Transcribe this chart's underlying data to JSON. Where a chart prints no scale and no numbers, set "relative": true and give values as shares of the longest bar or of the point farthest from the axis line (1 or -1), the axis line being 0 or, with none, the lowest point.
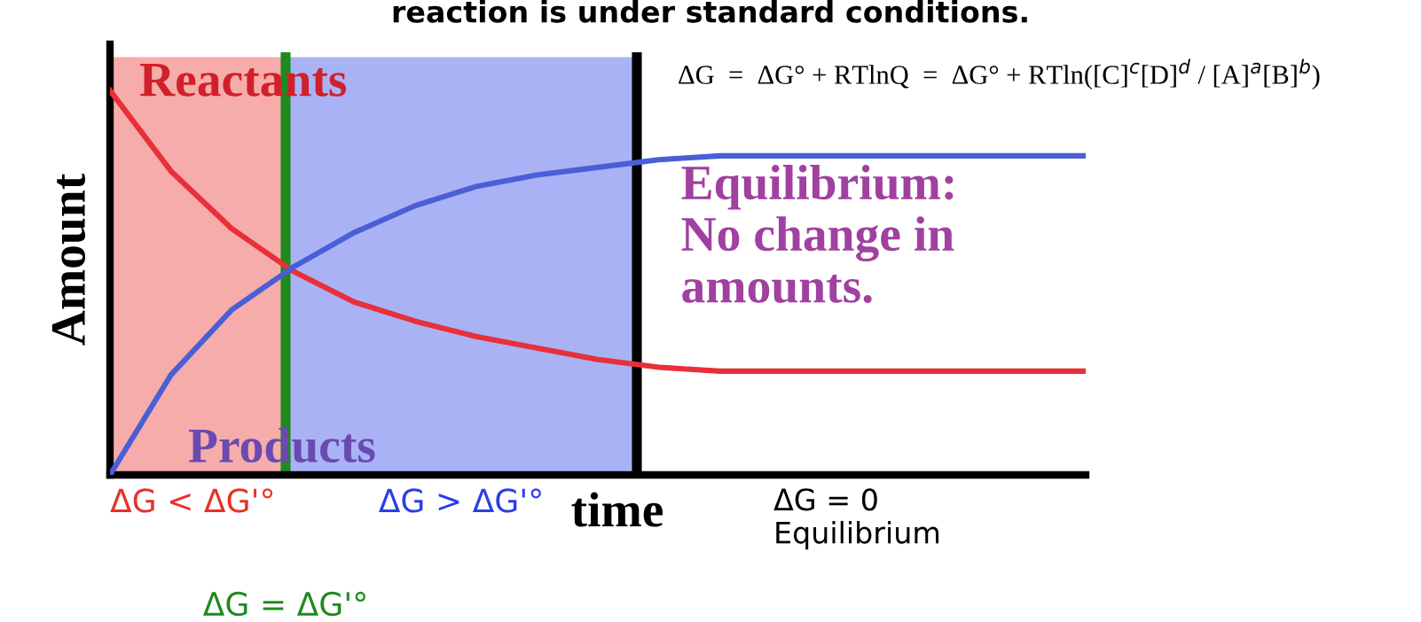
{
  "chart_data": {
    "type": "line",
    "title": "reaction is under standard conditions.",
    "xlabel": "time",
    "ylabel": "Amount",
    "relative": true,
    "marker": "none",
    "line_style": "solid",
    "categories": [
      null,
      null,
      null,
      null,
      null,
      null,
      null,
      null,
      null,
      null,
      null,
      null,
      null,
      null,
      null,
      null,
      null
    ],
    "series": [
      {
        "name": "Reactants",
        "color": "#e8303a",
        "values": [
          1.0,
          0.79,
          0.64,
          0.53,
          0.45,
          0.4,
          0.36,
          0.33,
          0.3,
          0.28,
          0.27,
          0.27,
          0.27,
          0.27,
          0.27,
          0.27,
          0.27
        ]
      },
      {
        "name": "Products",
        "color": "#4a5fd6",
        "values": [
          0,
          0.26,
          0.43,
          0.54,
          0.63,
          0.7,
          0.75,
          0.78,
          0.8,
          0.82,
          0.83,
          0.83,
          0.83,
          0.83,
          0.83,
          0.83,
          0.83
        ]
      }
    ],
    "annotations": [
      "Equilibrium:\nNo change in\namounts.",
      "ΔG  =  ΔG° + RTlnQ  =  ΔG° + RTln([C]$^{c}$[D]$^{d}$ / [A]$^{a}$[B]$^{b}$)",
      "ΔG < ΔG'°",
      "ΔG > ΔG'°",
      "ΔG = ΔG'°",
      "ΔG = 0\nEquilibrium"
    ]
  }
}
